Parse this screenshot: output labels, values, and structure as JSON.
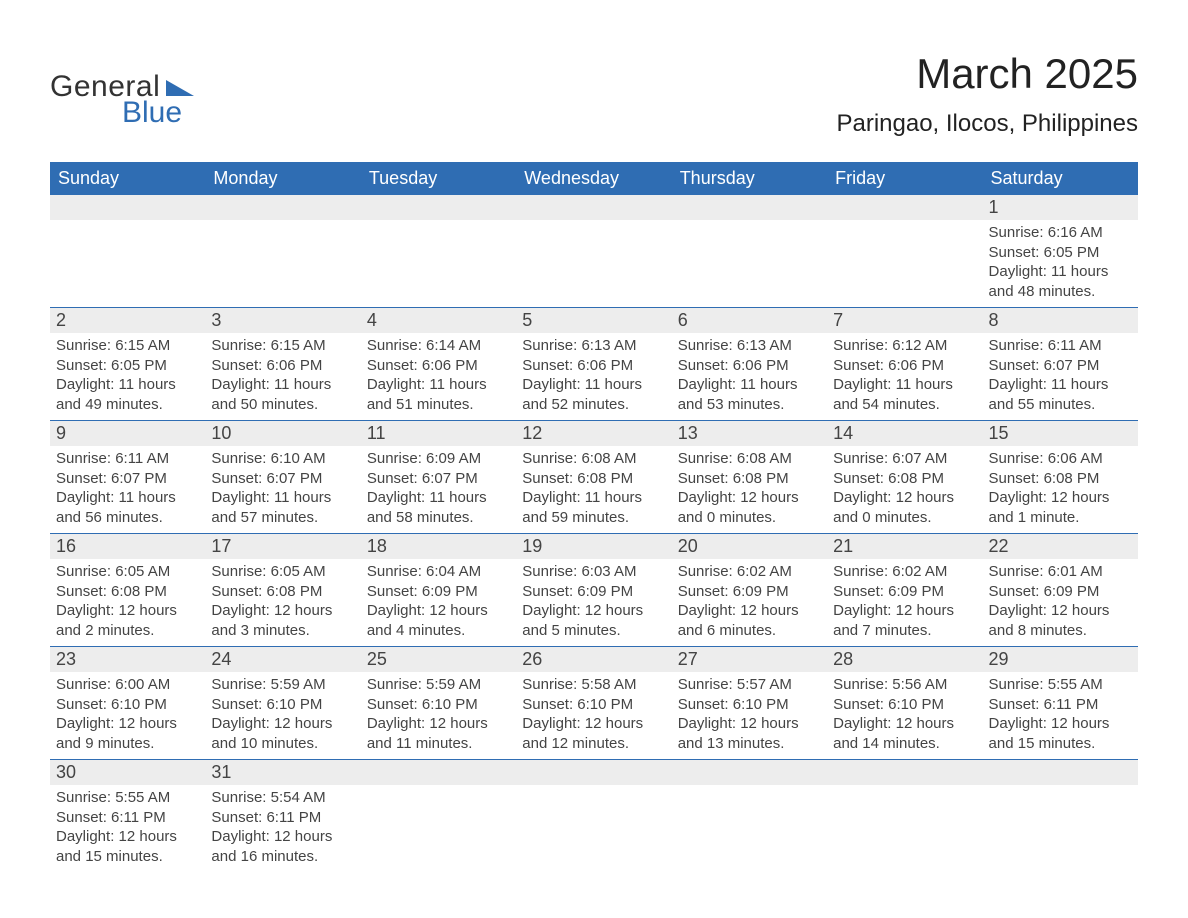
{
  "logo": {
    "line1": "General",
    "line2": "Blue",
    "triangle_color": "#2f6db3"
  },
  "header": {
    "month_title": "March 2025",
    "location": "Paringao, Ilocos, Philippines"
  },
  "colors": {
    "header_bg": "#2f6db3",
    "header_text": "#ffffff",
    "daynum_bg": "#ededed",
    "row_divider": "#2f6db3",
    "text": "#444444",
    "page_bg": "#ffffff"
  },
  "typography": {
    "month_title_fontsize": 42,
    "location_fontsize": 24,
    "day_header_fontsize": 18,
    "daynum_fontsize": 18,
    "body_fontsize": 15
  },
  "calendar": {
    "type": "table",
    "days_of_week": [
      "Sunday",
      "Monday",
      "Tuesday",
      "Wednesday",
      "Thursday",
      "Friday",
      "Saturday"
    ],
    "weeks": [
      [
        null,
        null,
        null,
        null,
        null,
        null,
        {
          "n": "1",
          "sunrise": "Sunrise: 6:16 AM",
          "sunset": "Sunset: 6:05 PM",
          "daylight": "Daylight: 11 hours and 48 minutes."
        }
      ],
      [
        {
          "n": "2",
          "sunrise": "Sunrise: 6:15 AM",
          "sunset": "Sunset: 6:05 PM",
          "daylight": "Daylight: 11 hours and 49 minutes."
        },
        {
          "n": "3",
          "sunrise": "Sunrise: 6:15 AM",
          "sunset": "Sunset: 6:06 PM",
          "daylight": "Daylight: 11 hours and 50 minutes."
        },
        {
          "n": "4",
          "sunrise": "Sunrise: 6:14 AM",
          "sunset": "Sunset: 6:06 PM",
          "daylight": "Daylight: 11 hours and 51 minutes."
        },
        {
          "n": "5",
          "sunrise": "Sunrise: 6:13 AM",
          "sunset": "Sunset: 6:06 PM",
          "daylight": "Daylight: 11 hours and 52 minutes."
        },
        {
          "n": "6",
          "sunrise": "Sunrise: 6:13 AM",
          "sunset": "Sunset: 6:06 PM",
          "daylight": "Daylight: 11 hours and 53 minutes."
        },
        {
          "n": "7",
          "sunrise": "Sunrise: 6:12 AM",
          "sunset": "Sunset: 6:06 PM",
          "daylight": "Daylight: 11 hours and 54 minutes."
        },
        {
          "n": "8",
          "sunrise": "Sunrise: 6:11 AM",
          "sunset": "Sunset: 6:07 PM",
          "daylight": "Daylight: 11 hours and 55 minutes."
        }
      ],
      [
        {
          "n": "9",
          "sunrise": "Sunrise: 6:11 AM",
          "sunset": "Sunset: 6:07 PM",
          "daylight": "Daylight: 11 hours and 56 minutes."
        },
        {
          "n": "10",
          "sunrise": "Sunrise: 6:10 AM",
          "sunset": "Sunset: 6:07 PM",
          "daylight": "Daylight: 11 hours and 57 minutes."
        },
        {
          "n": "11",
          "sunrise": "Sunrise: 6:09 AM",
          "sunset": "Sunset: 6:07 PM",
          "daylight": "Daylight: 11 hours and 58 minutes."
        },
        {
          "n": "12",
          "sunrise": "Sunrise: 6:08 AM",
          "sunset": "Sunset: 6:08 PM",
          "daylight": "Daylight: 11 hours and 59 minutes."
        },
        {
          "n": "13",
          "sunrise": "Sunrise: 6:08 AM",
          "sunset": "Sunset: 6:08 PM",
          "daylight": "Daylight: 12 hours and 0 minutes."
        },
        {
          "n": "14",
          "sunrise": "Sunrise: 6:07 AM",
          "sunset": "Sunset: 6:08 PM",
          "daylight": "Daylight: 12 hours and 0 minutes."
        },
        {
          "n": "15",
          "sunrise": "Sunrise: 6:06 AM",
          "sunset": "Sunset: 6:08 PM",
          "daylight": "Daylight: 12 hours and 1 minute."
        }
      ],
      [
        {
          "n": "16",
          "sunrise": "Sunrise: 6:05 AM",
          "sunset": "Sunset: 6:08 PM",
          "daylight": "Daylight: 12 hours and 2 minutes."
        },
        {
          "n": "17",
          "sunrise": "Sunrise: 6:05 AM",
          "sunset": "Sunset: 6:08 PM",
          "daylight": "Daylight: 12 hours and 3 minutes."
        },
        {
          "n": "18",
          "sunrise": "Sunrise: 6:04 AM",
          "sunset": "Sunset: 6:09 PM",
          "daylight": "Daylight: 12 hours and 4 minutes."
        },
        {
          "n": "19",
          "sunrise": "Sunrise: 6:03 AM",
          "sunset": "Sunset: 6:09 PM",
          "daylight": "Daylight: 12 hours and 5 minutes."
        },
        {
          "n": "20",
          "sunrise": "Sunrise: 6:02 AM",
          "sunset": "Sunset: 6:09 PM",
          "daylight": "Daylight: 12 hours and 6 minutes."
        },
        {
          "n": "21",
          "sunrise": "Sunrise: 6:02 AM",
          "sunset": "Sunset: 6:09 PM",
          "daylight": "Daylight: 12 hours and 7 minutes."
        },
        {
          "n": "22",
          "sunrise": "Sunrise: 6:01 AM",
          "sunset": "Sunset: 6:09 PM",
          "daylight": "Daylight: 12 hours and 8 minutes."
        }
      ],
      [
        {
          "n": "23",
          "sunrise": "Sunrise: 6:00 AM",
          "sunset": "Sunset: 6:10 PM",
          "daylight": "Daylight: 12 hours and 9 minutes."
        },
        {
          "n": "24",
          "sunrise": "Sunrise: 5:59 AM",
          "sunset": "Sunset: 6:10 PM",
          "daylight": "Daylight: 12 hours and 10 minutes."
        },
        {
          "n": "25",
          "sunrise": "Sunrise: 5:59 AM",
          "sunset": "Sunset: 6:10 PM",
          "daylight": "Daylight: 12 hours and 11 minutes."
        },
        {
          "n": "26",
          "sunrise": "Sunrise: 5:58 AM",
          "sunset": "Sunset: 6:10 PM",
          "daylight": "Daylight: 12 hours and 12 minutes."
        },
        {
          "n": "27",
          "sunrise": "Sunrise: 5:57 AM",
          "sunset": "Sunset: 6:10 PM",
          "daylight": "Daylight: 12 hours and 13 minutes."
        },
        {
          "n": "28",
          "sunrise": "Sunrise: 5:56 AM",
          "sunset": "Sunset: 6:10 PM",
          "daylight": "Daylight: 12 hours and 14 minutes."
        },
        {
          "n": "29",
          "sunrise": "Sunrise: 5:55 AM",
          "sunset": "Sunset: 6:11 PM",
          "daylight": "Daylight: 12 hours and 15 minutes."
        }
      ],
      [
        {
          "n": "30",
          "sunrise": "Sunrise: 5:55 AM",
          "sunset": "Sunset: 6:11 PM",
          "daylight": "Daylight: 12 hours and 15 minutes."
        },
        {
          "n": "31",
          "sunrise": "Sunrise: 5:54 AM",
          "sunset": "Sunset: 6:11 PM",
          "daylight": "Daylight: 12 hours and 16 minutes."
        },
        null,
        null,
        null,
        null,
        null
      ]
    ]
  }
}
